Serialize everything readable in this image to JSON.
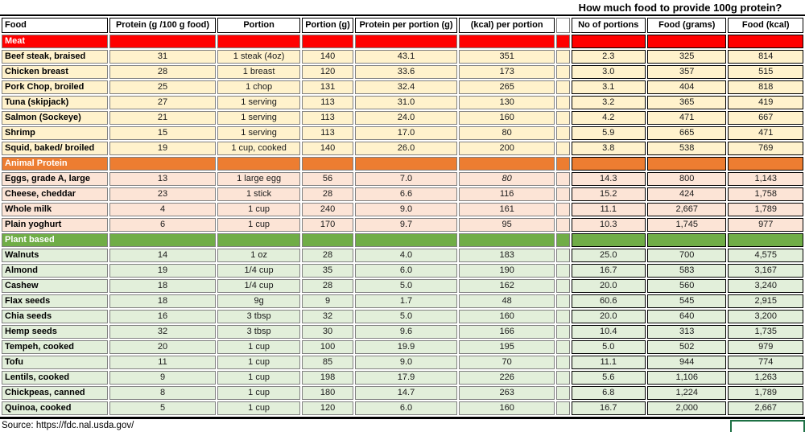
{
  "title": "How much food to provide 100g protein?",
  "source": "Source: https://fdc.nal.usda.gov/",
  "columns": [
    "Food",
    "Protein (g /100 g food)",
    "Portion",
    "Portion (g)",
    "Protein per portion (g)",
    "(kcal) per portion",
    "",
    "No of portions",
    "Food (grams)",
    "Food (kcal)"
  ],
  "colors": {
    "meat_header": "#FF0000",
    "animal_header": "#ED7D31",
    "plant_header": "#70AD47",
    "meat_row_bg": "#FFF2CC",
    "animal_row_bg": "#FCE4D6",
    "plant_row_bg": "#E2EFDA",
    "grid_gray": "#808080",
    "grid_black": "#000000",
    "active_cell_green": "#1E7145"
  },
  "sections": [
    {
      "label": "Meat",
      "color": "#FF0000",
      "row_bg": "#FFF2CC",
      "rows": [
        {
          "food": "Beef steak, braised",
          "protein_100g": "31",
          "portion": "1 steak (4oz)",
          "portion_g": "140",
          "protein_portion": "43.1",
          "kcal_portion": "351",
          "portions": "2.3",
          "food_g": "325",
          "food_kcal": "814"
        },
        {
          "food": "Chicken breast",
          "protein_100g": "28",
          "portion": "1 breast",
          "portion_g": "120",
          "protein_portion": "33.6",
          "kcal_portion": "173",
          "portions": "3.0",
          "food_g": "357",
          "food_kcal": "515"
        },
        {
          "food": "Pork Chop, broiled",
          "protein_100g": "25",
          "portion": "1 chop",
          "portion_g": "131",
          "protein_portion": "32.4",
          "kcal_portion": "265",
          "portions": "3.1",
          "food_g": "404",
          "food_kcal": "818"
        },
        {
          "food": "Tuna (skipjack)",
          "protein_100g": "27",
          "portion": "1 serving",
          "portion_g": "113",
          "protein_portion": "31.0",
          "kcal_portion": "130",
          "portions": "3.2",
          "food_g": "365",
          "food_kcal": "419"
        },
        {
          "food": "Salmon (Sockeye)",
          "protein_100g": "21",
          "portion": "1 serving",
          "portion_g": "113",
          "protein_portion": "24.0",
          "kcal_portion": "160",
          "portions": "4.2",
          "food_g": "471",
          "food_kcal": "667"
        },
        {
          "food": "Shrimp",
          "protein_100g": "15",
          "portion": "1 serving",
          "portion_g": "113",
          "protein_portion": "17.0",
          "kcal_portion": "80",
          "portions": "5.9",
          "food_g": "665",
          "food_kcal": "471"
        },
        {
          "food": "Squid, baked/ broiled",
          "protein_100g": "19",
          "portion": "1 cup, cooked",
          "portion_g": "140",
          "protein_portion": "26.0",
          "kcal_portion": "200",
          "portions": "3.8",
          "food_g": "538",
          "food_kcal": "769"
        }
      ]
    },
    {
      "label": "Animal Protein",
      "color": "#ED7D31",
      "row_bg": "#FCE4D6",
      "rows": [
        {
          "food": "Eggs, grade A, large",
          "protein_100g": "13",
          "portion": "1 large egg",
          "portion_g": "56",
          "protein_portion": "7.0",
          "kcal_portion": "80",
          "kcal_italic": true,
          "portions": "14.3",
          "food_g": "800",
          "food_kcal": "1,143"
        },
        {
          "food": "Cheese, cheddar",
          "protein_100g": "23",
          "portion": "1 stick",
          "portion_g": "28",
          "protein_portion": "6.6",
          "kcal_portion": "116",
          "portions": "15.2",
          "food_g": "424",
          "food_kcal": "1,758"
        },
        {
          "food": "Whole milk",
          "protein_100g": "4",
          "portion": "1 cup",
          "portion_g": "240",
          "protein_portion": "9.0",
          "kcal_portion": "161",
          "portions": "11.1",
          "food_g": "2,667",
          "food_kcal": "1,789"
        },
        {
          "food": "Plain yoghurt",
          "protein_100g": "6",
          "portion": "1 cup",
          "portion_g": "170",
          "protein_portion": "9.7",
          "kcal_portion": "95",
          "portions": "10.3",
          "food_g": "1,745",
          "food_kcal": "977"
        }
      ]
    },
    {
      "label": "Plant based",
      "color": "#70AD47",
      "row_bg": "#E2EFDA",
      "rows": [
        {
          "food": "Walnuts",
          "protein_100g": "14",
          "portion": "1 oz",
          "portion_g": "28",
          "protein_portion": "4.0",
          "kcal_portion": "183",
          "portions": "25.0",
          "food_g": "700",
          "food_kcal": "4,575"
        },
        {
          "food": "Almond",
          "protein_100g": "19",
          "portion": "1/4 cup",
          "portion_g": "35",
          "protein_portion": "6.0",
          "kcal_portion": "190",
          "portions": "16.7",
          "food_g": "583",
          "food_kcal": "3,167"
        },
        {
          "food": "Cashew",
          "protein_100g": "18",
          "portion": "1/4 cup",
          "portion_g": "28",
          "protein_portion": "5.0",
          "kcal_portion": "162",
          "portions": "20.0",
          "food_g": "560",
          "food_kcal": "3,240"
        },
        {
          "food": "Flax seeds",
          "protein_100g": "18",
          "portion": "9g",
          "portion_g": "9",
          "protein_portion": "1.7",
          "kcal_portion": "48",
          "portions": "60.6",
          "food_g": "545",
          "food_kcal": "2,915"
        },
        {
          "food": "Chia seeds",
          "protein_100g": "16",
          "portion": "3 tbsp",
          "portion_g": "32",
          "protein_portion": "5.0",
          "kcal_portion": "160",
          "portions": "20.0",
          "food_g": "640",
          "food_kcal": "3,200"
        },
        {
          "food": "Hemp seeds",
          "protein_100g": "32",
          "portion": "3 tbsp",
          "portion_g": "30",
          "protein_portion": "9.6",
          "kcal_portion": "166",
          "portions": "10.4",
          "food_g": "313",
          "food_kcal": "1,735"
        },
        {
          "food": "Tempeh, cooked",
          "protein_100g": "20",
          "portion": "1 cup",
          "portion_g": "100",
          "protein_portion": "19.9",
          "kcal_portion": "195",
          "portions": "5.0",
          "food_g": "502",
          "food_kcal": "979"
        },
        {
          "food": "Tofu",
          "protein_100g": "11",
          "portion": "1 cup",
          "portion_g": "85",
          "protein_portion": "9.0",
          "kcal_portion": "70",
          "portions": "11.1",
          "food_g": "944",
          "food_kcal": "774"
        },
        {
          "food": "Lentils, cooked",
          "protein_100g": "9",
          "portion": "1 cup",
          "portion_g": "198",
          "protein_portion": "17.9",
          "kcal_portion": "226",
          "portions": "5.6",
          "food_g": "1,106",
          "food_kcal": "1,263"
        },
        {
          "food": "Chickpeas, canned",
          "protein_100g": "8",
          "portion": "1 cup",
          "portion_g": "180",
          "protein_portion": "14.7",
          "kcal_portion": "263",
          "portions": "6.8",
          "food_g": "1,224",
          "food_kcal": "1,789"
        },
        {
          "food": "Quinoa, cooked",
          "protein_100g": "5",
          "portion": "1 cup",
          "portion_g": "120",
          "protein_portion": "6.0",
          "kcal_portion": "160",
          "portions": "16.7",
          "food_g": "2,000",
          "food_kcal": "2,667"
        }
      ]
    }
  ]
}
